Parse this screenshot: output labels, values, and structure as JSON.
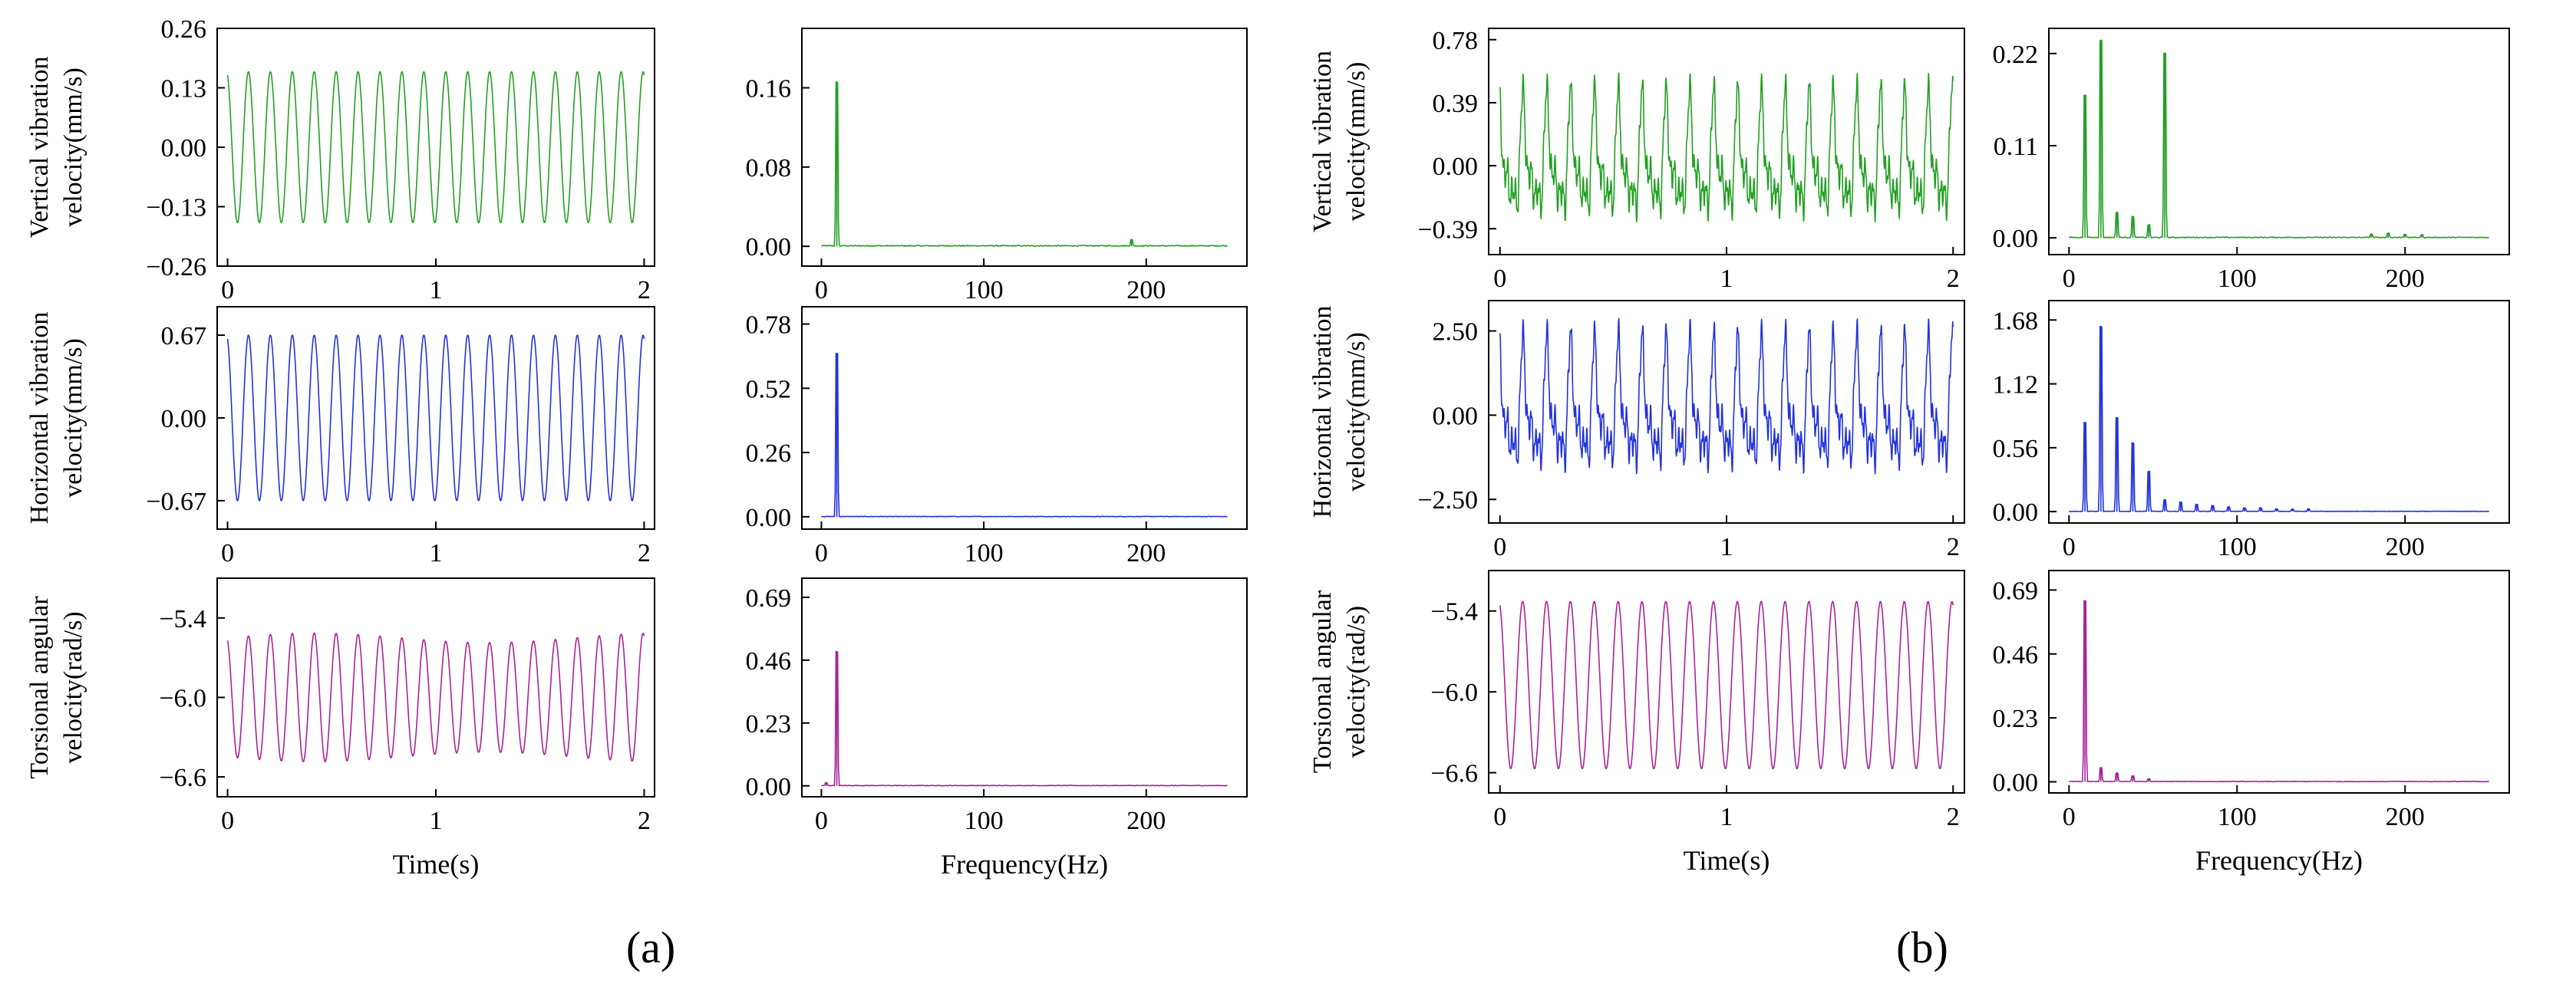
{
  "chart_data": [
    {
      "id": "a-time-vertical",
      "group": "a",
      "type": "line",
      "kind": "time",
      "ylabel": "Vertical vibration velocity(mm/s)",
      "xlabel": "",
      "xticks": [
        0,
        1,
        2
      ],
      "xlim": [
        -0.05,
        2.05
      ],
      "yticks": [
        -0.26,
        -0.13,
        0.0,
        0.13,
        0.26
      ],
      "ylim": [
        -0.26,
        0.26
      ],
      "ytick_labels": [
        "−0.26",
        "−0.13",
        "0.00",
        "0.13",
        "0.26"
      ],
      "color": "#22a022",
      "series": [
        {
          "name": "signal",
          "amplitude": 0.165,
          "offset": 0.0,
          "frequency_hz": 9.5,
          "x_range": [
            0,
            2
          ]
        }
      ]
    },
    {
      "id": "a-fft-vertical",
      "group": "a",
      "type": "line",
      "kind": "spectrum",
      "ylabel": "",
      "xlabel": "",
      "xticks": [
        0,
        100,
        200
      ],
      "xlim": [
        -12,
        262
      ],
      "yticks": [
        0.0,
        0.08,
        0.16
      ],
      "ylim": [
        -0.02,
        0.22
      ],
      "ytick_labels": [
        "0.00",
        "0.08",
        "0.16"
      ],
      "color": "#22a022",
      "series": [
        {
          "name": "spectrum",
          "peaks": [
            [
              9.5,
              0.165
            ],
            [
              191,
              0.006
            ]
          ],
          "noise": 0.001
        }
      ]
    },
    {
      "id": "a-time-horizontal",
      "group": "a",
      "type": "line",
      "kind": "time",
      "ylabel": "Horizontal vibration velocity(mm/s)",
      "xlabel": "",
      "xticks": [
        0,
        1,
        2
      ],
      "xlim": [
        -0.05,
        2.05
      ],
      "yticks": [
        -0.67,
        0.0,
        0.67
      ],
      "ylim": [
        -0.9,
        0.9
      ],
      "ytick_labels": [
        "−0.67",
        "0.00",
        "0.67"
      ],
      "color": "#2233dd",
      "series": [
        {
          "name": "signal",
          "amplitude": 0.67,
          "offset": 0.0,
          "frequency_hz": 9.5,
          "x_range": [
            0,
            2
          ]
        }
      ]
    },
    {
      "id": "a-fft-horizontal",
      "group": "a",
      "type": "line",
      "kind": "spectrum",
      "ylabel": "",
      "xlabel": "",
      "xticks": [
        0,
        100,
        200
      ],
      "xlim": [
        -12,
        262
      ],
      "yticks": [
        0.0,
        0.26,
        0.52,
        0.78
      ],
      "ylim": [
        -0.05,
        0.85
      ],
      "ytick_labels": [
        "0.00",
        "0.26",
        "0.52",
        "0.78"
      ],
      "color": "#2233dd",
      "series": [
        {
          "name": "spectrum",
          "peaks": [
            [
              9.5,
              0.66
            ]
          ],
          "noise": 0.002
        }
      ]
    },
    {
      "id": "a-time-torsional",
      "group": "a",
      "type": "line",
      "kind": "time",
      "ylabel": "Torsional angular velocity(rad/s)",
      "xlabel": "Time(s)",
      "xticks": [
        0,
        1,
        2
      ],
      "xlim": [
        -0.05,
        2.05
      ],
      "yticks": [
        -6.6,
        -6.0,
        -5.4
      ],
      "ylim": [
        -6.75,
        -5.1
      ],
      "ytick_labels": [
        "−6.6",
        "−6.0",
        "−5.4"
      ],
      "color": "#aa2299",
      "series": [
        {
          "name": "signal",
          "amplitude": 0.45,
          "offset": -6.0,
          "frequency_hz": 9.5,
          "x_range": [
            0,
            2
          ]
        }
      ]
    },
    {
      "id": "a-fft-torsional",
      "group": "a",
      "type": "line",
      "kind": "spectrum",
      "ylabel": "",
      "xlabel": "Frequency(Hz)",
      "xticks": [
        0,
        100,
        200
      ],
      "xlim": [
        -12,
        262
      ],
      "yticks": [
        0.0,
        0.23,
        0.46,
        0.69
      ],
      "ylim": [
        -0.04,
        0.76
      ],
      "ytick_labels": [
        "0.00",
        "0.23",
        "0.46",
        "0.69"
      ],
      "color": "#aa2299",
      "series": [
        {
          "name": "spectrum",
          "peaks": [
            [
              9.5,
              0.49
            ],
            [
              3,
              0.01
            ]
          ],
          "noise": 0.002
        }
      ]
    },
    {
      "id": "b-time-vertical",
      "group": "b",
      "type": "line",
      "kind": "time",
      "ylabel": "Vertical vibration velocity(mm/s)",
      "xlabel": "",
      "xticks": [
        0,
        1,
        2
      ],
      "xlim": [
        -0.05,
        2.05
      ],
      "yticks": [
        -0.39,
        0.0,
        0.39,
        0.78
      ],
      "ylim": [
        -0.55,
        0.85
      ],
      "ytick_labels": [
        "−0.39",
        "0.00",
        "0.39",
        "0.78"
      ],
      "color": "#22a022",
      "series": [
        {
          "name": "signal",
          "amplitude": 0.52,
          "offset": 0.0,
          "frequency_hz": 9.5,
          "harmonics": true,
          "x_range": [
            0,
            2
          ]
        }
      ]
    },
    {
      "id": "b-fft-vertical",
      "group": "b",
      "type": "line",
      "kind": "spectrum",
      "ylabel": "",
      "xlabel": "",
      "xticks": [
        0,
        100,
        200
      ],
      "xlim": [
        -12,
        262
      ],
      "yticks": [
        0.0,
        0.11,
        0.22
      ],
      "ylim": [
        -0.02,
        0.25
      ],
      "ytick_labels": [
        "0.00",
        "0.11",
        "0.22"
      ],
      "color": "#22a022",
      "series": [
        {
          "name": "spectrum",
          "peaks": [
            [
              9.5,
              0.17
            ],
            [
              19,
              0.235
            ],
            [
              28.5,
              0.03
            ],
            [
              38,
              0.025
            ],
            [
              47.5,
              0.015
            ],
            [
              57,
              0.22
            ],
            [
              180,
              0.004
            ],
            [
              190,
              0.005
            ],
            [
              200,
              0.004
            ],
            [
              210,
              0.003
            ]
          ],
          "noise": 0.001
        }
      ]
    },
    {
      "id": "b-time-horizontal",
      "group": "b",
      "type": "line",
      "kind": "time",
      "ylabel": "Horizontal vibration velocity(mm/s)",
      "xlabel": "",
      "xticks": [
        0,
        1,
        2
      ],
      "xlim": [
        -0.05,
        2.05
      ],
      "yticks": [
        -2.5,
        0.0,
        2.5
      ],
      "ylim": [
        -3.2,
        3.4
      ],
      "ytick_labels": [
        "−2.50",
        "0.00",
        "2.50"
      ],
      "color": "#2233dd",
      "series": [
        {
          "name": "signal",
          "amplitude": 2.6,
          "offset": 0.0,
          "frequency_hz": 9.5,
          "harmonics": true,
          "x_range": [
            0,
            2
          ]
        }
      ]
    },
    {
      "id": "b-fft-horizontal",
      "group": "b",
      "type": "line",
      "kind": "spectrum",
      "ylabel": "",
      "xlabel": "",
      "xticks": [
        0,
        100,
        200
      ],
      "xlim": [
        -12,
        262
      ],
      "yticks": [
        0.0,
        0.56,
        1.12,
        1.68
      ],
      "ylim": [
        -0.1,
        1.85
      ],
      "ytick_labels": [
        "0.00",
        "0.56",
        "1.12",
        "1.68"
      ],
      "color": "#2233dd",
      "series": [
        {
          "name": "spectrum",
          "peaks": [
            [
              9.5,
              0.78
            ],
            [
              19,
              1.62
            ],
            [
              28.5,
              0.82
            ],
            [
              38,
              0.6
            ],
            [
              47.5,
              0.35
            ],
            [
              57,
              0.1
            ],
            [
              66.5,
              0.08
            ],
            [
              76,
              0.06
            ],
            [
              85.5,
              0.05
            ],
            [
              95,
              0.04
            ],
            [
              104.5,
              0.03
            ],
            [
              114,
              0.03
            ],
            [
              123.5,
              0.02
            ],
            [
              133,
              0.02
            ],
            [
              142.5,
              0.02
            ]
          ],
          "noise": 0.004
        }
      ]
    },
    {
      "id": "b-time-torsional",
      "group": "b",
      "type": "line",
      "kind": "time",
      "ylabel": "Torsional angular velocity(rad/s)",
      "xlabel": "Time(s)",
      "xticks": [
        0,
        1,
        2
      ],
      "xlim": [
        -0.05,
        2.05
      ],
      "yticks": [
        -6.6,
        -6.0,
        -5.4
      ],
      "ylim": [
        -6.75,
        -5.1
      ],
      "ytick_labels": [
        "−6.6",
        "−6.0",
        "−5.4"
      ],
      "color": "#aa2299",
      "series": [
        {
          "name": "signal",
          "amplitude": 0.62,
          "offset": -5.95,
          "frequency_hz": 9.5,
          "x_range": [
            0,
            2
          ]
        }
      ]
    },
    {
      "id": "b-fft-torsional",
      "group": "b",
      "type": "line",
      "kind": "spectrum",
      "ylabel": "",
      "xlabel": "Frequency(Hz)",
      "xticks": [
        0,
        100,
        200
      ],
      "xlim": [
        -12,
        262
      ],
      "yticks": [
        0.0,
        0.23,
        0.46,
        0.69
      ],
      "ylim": [
        -0.04,
        0.76
      ],
      "ytick_labels": [
        "0.00",
        "0.23",
        "0.46",
        "0.69"
      ],
      "color": "#aa2299",
      "series": [
        {
          "name": "spectrum",
          "peaks": [
            [
              9.5,
              0.65
            ],
            [
              19,
              0.05
            ],
            [
              28.5,
              0.03
            ],
            [
              38,
              0.02
            ],
            [
              47.5,
              0.01
            ]
          ],
          "noise": 0.002
        }
      ]
    }
  ],
  "panel_labels": {
    "a": "(a)",
    "b": "(b)"
  }
}
